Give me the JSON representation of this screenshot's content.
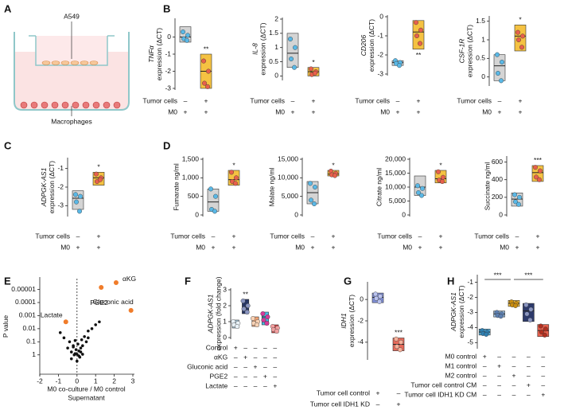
{
  "diagram": {
    "panel": "A",
    "labels": [
      "A549",
      "Macrophages"
    ]
  },
  "chart_data": [
    {
      "type": "box",
      "panel": "B",
      "ylabel_gene": "TNFα",
      "ylabel": "expression (ΔCT)",
      "ylim": [
        -3,
        1
      ],
      "yticks": [
        0,
        -1,
        -2,
        -3
      ],
      "groups": [
        {
          "color": "#d4d4d4",
          "point_color": "#5ab8e6",
          "low": -0.3,
          "median": 0,
          "high": 0.6,
          "points": [
            0.3,
            0.1,
            -0.1,
            -0.2
          ]
        },
        {
          "color": "#f5c242",
          "point_color": "#e8604c",
          "low": -3,
          "median": -2,
          "high": -1,
          "points": [
            -1.4,
            -2,
            -2.7,
            -2.9
          ],
          "label": "**"
        }
      ],
      "conditions": [
        {
          "name": "Tumor cells",
          "signs": [
            "–",
            "+"
          ]
        },
        {
          "name": "M0",
          "signs": [
            "+",
            "+"
          ]
        }
      ]
    },
    {
      "type": "box",
      "ylabel_gene": "IL-8",
      "ylabel": "expression (ΔCT)",
      "ylim": [
        -0.1,
        2
      ],
      "yticks": [
        0,
        0.5,
        1,
        1.5,
        2
      ],
      "groups": [
        {
          "color": "#d4d4d4",
          "point_color": "#5ab8e6",
          "low": 0.3,
          "median": 0.8,
          "high": 1.5,
          "points": [
            1.3,
            1.0,
            0.6,
            0.3
          ]
        },
        {
          "color": "#f5c242",
          "point_color": "#e8604c",
          "low": 0,
          "median": 0.15,
          "high": 0.3,
          "points": [
            0.25,
            0.15,
            0.05,
            0.1
          ],
          "label": "*"
        }
      ],
      "conditions": [
        {
          "name": "Tumor cells",
          "signs": [
            "–",
            "+"
          ]
        },
        {
          "name": "M0",
          "signs": [
            "+",
            "+"
          ]
        }
      ]
    },
    {
      "type": "box",
      "ylabel_gene": "CD206",
      "ylabel": "expression (ΔCT)",
      "ylim": [
        -3,
        0
      ],
      "yticks": [
        0,
        -1,
        -2,
        -3
      ],
      "groups": [
        {
          "color": "#d4d4d4",
          "point_color": "#5ab8e6",
          "low": -2.55,
          "median": -2.4,
          "high": -2.3,
          "points": [
            -2.3,
            -2.4,
            -2.45,
            -2.55
          ]
        },
        {
          "color": "#f5c242",
          "point_color": "#e8604c",
          "low": -1.7,
          "median": -0.8,
          "high": -0.2,
          "points": [
            -0.3,
            -0.7,
            -1.0,
            -1.4
          ],
          "label": "**"
        }
      ],
      "conditions": [
        {
          "name": "Tumor cells",
          "signs": [
            "–",
            "+"
          ]
        },
        {
          "name": "M0",
          "signs": [
            "+",
            "+"
          ]
        }
      ]
    },
    {
      "type": "box",
      "ylabel_gene": "CSF-1R",
      "ylabel": "expression (ΔCT)",
      "ylim": [
        -0.2,
        1.6
      ],
      "yticks": [
        0,
        0.5,
        1,
        1.5
      ],
      "groups": [
        {
          "color": "#d4d4d4",
          "point_color": "#5ab8e6",
          "low": -0.1,
          "median": 0.3,
          "high": 0.6,
          "points": [
            0.6,
            0.4,
            0.1,
            -0.1
          ]
        },
        {
          "color": "#f5c242",
          "point_color": "#e8604c",
          "low": 0.7,
          "median": 1.1,
          "high": 1.4,
          "points": [
            1.2,
            1.1,
            1.0,
            0.8
          ],
          "label": "*"
        }
      ],
      "conditions": [
        {
          "name": "Tumor cells",
          "signs": [
            "–",
            "+"
          ]
        },
        {
          "name": "M0",
          "signs": [
            "+",
            "+"
          ]
        }
      ]
    },
    {
      "type": "box",
      "panel": "C",
      "ylabel_gene": "ADPGK-AS1",
      "ylabel": "expression (ΔCT)",
      "ylim": [
        -3.5,
        -0.5
      ],
      "yticks": [
        -1,
        -2,
        -3
      ],
      "groups": [
        {
          "color": "#d4d4d4",
          "point_color": "#5ab8e6",
          "low": -3.2,
          "median": -2.6,
          "high": -2.2,
          "points": [
            -2.4,
            -2.5,
            -2.8,
            -3.3
          ]
        },
        {
          "color": "#f5c242",
          "point_color": "#e8604c",
          "low": -1.9,
          "median": -1.5,
          "high": -1.2,
          "points": [
            -1.3,
            -1.5,
            -1.7,
            -1.6
          ],
          "label": "*"
        }
      ],
      "conditions": [
        {
          "name": "Tumor cells",
          "signs": [
            "–",
            "+"
          ]
        },
        {
          "name": "M0",
          "signs": [
            "+",
            "+"
          ]
        }
      ]
    },
    {
      "type": "box",
      "panel": "D",
      "ylabel": "Fumarate ng/ml",
      "ylim": [
        0,
        1500
      ],
      "yticks": [
        0,
        500,
        {
          "value": 1000,
          "label": "1,000"
        },
        {
          "value": 1500,
          "label": "1,500"
        }
      ],
      "groups": [
        {
          "color": "#d4d4d4",
          "point_color": "#5ab8e6",
          "low": 100,
          "median": 350,
          "high": 700,
          "points": [
            700,
            500,
            150,
            100
          ]
        },
        {
          "color": "#f5c242",
          "point_color": "#e8604c",
          "low": 800,
          "median": 950,
          "high": 1200,
          "points": [
            1150,
            1000,
            900,
            850
          ],
          "label": "*"
        }
      ],
      "conditions": [
        {
          "name": "Tumor cells",
          "signs": [
            "–",
            "+"
          ]
        },
        {
          "name": "M0",
          "signs": [
            "+",
            "+"
          ]
        }
      ]
    },
    {
      "type": "box",
      "ylabel": "Malate ng/ml",
      "ylim": [
        0,
        15000
      ],
      "yticks": [
        0,
        {
          "value": 5000,
          "label": "5,000"
        },
        {
          "value": 10000,
          "label": "10,000"
        },
        {
          "value": 15000,
          "label": "15,000"
        }
      ],
      "groups": [
        {
          "color": "#d4d4d4",
          "point_color": "#5ab8e6",
          "low": 3000,
          "median": 6000,
          "high": 9000,
          "points": [
            8500,
            7500,
            4000,
            3000
          ]
        },
        {
          "color": "#f5c242",
          "point_color": "#e8604c",
          "low": 10500,
          "median": 11000,
          "high": 12000,
          "points": [
            11800,
            11200,
            10800,
            10600
          ],
          "label": "*"
        }
      ],
      "conditions": [
        {
          "name": "Tumor cells",
          "signs": [
            "–",
            "+"
          ]
        },
        {
          "name": "M0",
          "signs": [
            "+",
            "+"
          ]
        }
      ]
    },
    {
      "type": "box",
      "ylabel": "Citrate ng/ml",
      "ylim": [
        0,
        20000
      ],
      "yticks": [
        0,
        {
          "value": 5000,
          "label": "5,000"
        },
        {
          "value": 10000,
          "label": "10,000"
        },
        {
          "value": 15000,
          "label": "15,000"
        },
        {
          "value": 20000,
          "label": "20,000"
        }
      ],
      "groups": [
        {
          "color": "#d4d4d4",
          "point_color": "#5ab8e6",
          "low": 7000,
          "median": 10000,
          "high": 14000,
          "points": [
            10500,
            9500,
            8000,
            7000
          ]
        },
        {
          "color": "#f5c242",
          "point_color": "#e8604c",
          "low": 11500,
          "median": 13000,
          "high": 16000,
          "points": [
            15500,
            13500,
            12500,
            12000
          ],
          "label": "*"
        }
      ],
      "conditions": [
        {
          "name": "Tumor cells",
          "signs": [
            "–",
            "+"
          ]
        },
        {
          "name": "M0",
          "signs": [
            "+",
            "+"
          ]
        }
      ]
    },
    {
      "type": "box",
      "ylabel": "Succinate ng/ml",
      "ylim": [
        0,
        650
      ],
      "yticks": [
        0,
        200,
        400,
        600
      ],
      "groups": [
        {
          "color": "#d4d4d4",
          "point_color": "#5ab8e6",
          "low": 100,
          "median": 180,
          "high": 250,
          "points": [
            230,
            200,
            150,
            120
          ]
        },
        {
          "color": "#f5c242",
          "point_color": "#e8604c",
          "low": 380,
          "median": 480,
          "high": 560,
          "points": [
            540,
            500,
            430,
            400
          ],
          "label": "***"
        }
      ],
      "conditions": [
        {
          "name": "Tumor cells",
          "signs": [
            "–",
            "+"
          ]
        },
        {
          "name": "M0",
          "signs": [
            "+",
            "+"
          ]
        }
      ]
    },
    {
      "type": "scatter",
      "panel": "E",
      "ylabel": "P value",
      "xlabel": "M0 co-culture / M0 control",
      "xlabel2": "Supernatant",
      "log_y": true,
      "xlim": [
        -2,
        3
      ],
      "xticks": [
        -2,
        -1,
        0,
        1,
        2,
        3
      ],
      "ylim": [
        30,
        1.5e-06
      ],
      "yticks": [
        1e-05,
        0.0001,
        0.001,
        0.01,
        0.1,
        1
      ],
      "series": [
        {
          "color": "#111111",
          "x": [
            -0.9,
            -0.7,
            -0.5,
            -0.4,
            -0.3,
            -0.2,
            -0.15,
            -0.1,
            -0.05,
            0,
            0.05,
            0.1,
            0.15,
            0.2,
            0.25,
            0.3,
            0.4,
            0.5,
            0.6,
            0.8,
            1.0,
            1.2,
            -0.3,
            -0.1,
            0.1,
            0.2,
            -0.2,
            0.0,
            0.3,
            0.6
          ],
          "y": [
            0.02,
            0.05,
            0.3,
            0.1,
            0.6,
            0.2,
            1,
            0.08,
            0.4,
            0.9,
            0.15,
            0.5,
            1.5,
            0.3,
            0.07,
            0.2,
            0.04,
            0.1,
            0.015,
            0.01,
            0.005,
            0.003,
            2,
            0.8,
            1.2,
            0.6,
            0.25,
            3,
            0.9,
            0.05
          ]
        },
        {
          "color": "#f07c2a",
          "x": [
            1.3,
            2.1,
            2.9,
            -0.6
          ],
          "y": [
            7e-06,
            3e-06,
            0.0004,
            0.003
          ],
          "point_labels": [
            "PGE2",
            "αKG",
            "Gluconic acid",
            "Lactate"
          ]
        }
      ]
    },
    {
      "type": "box",
      "panel": "F",
      "ylabel_gene": "ADPGK-AS1",
      "ylabel": "expression (fold change)",
      "ylim": [
        0,
        3
      ],
      "yticks": [
        0,
        1,
        2,
        3
      ],
      "groups": [
        {
          "color": "#a9c9dd",
          "point_color": "#e8f1f7",
          "low": 0.6,
          "median": 0.85,
          "high": 1.1,
          "points": [
            1.0,
            0.9,
            0.8,
            0.7
          ]
        },
        {
          "color": "#263665",
          "point_color": "#8a95c0",
          "low": 1.5,
          "median": 1.9,
          "high": 2.4,
          "points": [
            2.3,
            2.0,
            1.8,
            1.6
          ],
          "label": "**"
        },
        {
          "color": "#f0a070",
          "point_color": "#f8d2b5",
          "low": 0.7,
          "median": 1.0,
          "high": 1.3,
          "points": [
            1.2,
            1.0,
            0.9,
            0.8
          ]
        },
        {
          "color": "#45bde6",
          "point_color": "#d63a9a",
          "low": 0.8,
          "median": 1.3,
          "high": 1.6,
          "points": [
            1.5,
            1.3,
            1.1,
            0.9
          ]
        },
        {
          "color": "#d93b3b",
          "point_color": "#f2a0a0",
          "low": 0.3,
          "median": 0.55,
          "high": 0.8,
          "points": [
            0.7,
            0.6,
            0.5,
            0.4
          ]
        }
      ],
      "conditions": [
        {
          "name": "Control",
          "signs": [
            "+",
            "–",
            "–",
            "–",
            "–"
          ]
        },
        {
          "name": "αKG",
          "signs": [
            "–",
            "+",
            "–",
            "–",
            "–"
          ]
        },
        {
          "name": "Gluconic acid",
          "signs": [
            "–",
            "–",
            "+",
            "–",
            "–"
          ]
        },
        {
          "name": "PGE2",
          "signs": [
            "–",
            "–",
            "–",
            "+",
            "–"
          ]
        },
        {
          "name": "Lactate",
          "signs": [
            "–",
            "–",
            "–",
            "–",
            "+"
          ]
        }
      ]
    },
    {
      "type": "box",
      "panel": "G",
      "ylabel_gene": "IDH1",
      "ylabel": "expression (ΔCT)",
      "ylim": [
        -5.5,
        1.5
      ],
      "yticks": [
        0,
        -2,
        -4
      ],
      "groups": [
        {
          "color": "#7f8ed6",
          "point_color": "#b9c2ee",
          "low": -0.3,
          "median": 0.2,
          "high": 0.6,
          "points": [
            0.5,
            0.3,
            0.1,
            -0.2
          ]
        },
        {
          "color": "#e86a5a",
          "point_color": "#f5b09a",
          "low": -4.8,
          "median": -4.2,
          "high": -3.6,
          "points": [
            -3.7,
            -4,
            -4.4,
            -4.7
          ],
          "label": "***"
        }
      ],
      "conditions": [
        {
          "name": "Tumor cell control",
          "signs": [
            "+",
            "–"
          ]
        },
        {
          "name": "Tumor cell  IDH1 KD",
          "signs": [
            "–",
            "+"
          ]
        }
      ]
    },
    {
      "type": "box",
      "panel": "H",
      "ylabel_gene": "ADPGK-AS1",
      "ylabel": "expression (ΔCT)",
      "ylim": [
        -5.3,
        -0.6
      ],
      "yticks": [
        -1,
        -2,
        -3,
        -4,
        -5
      ],
      "groups": [
        {
          "color": "#5ab8e6",
          "point_color": "#2f7fb0",
          "low": -4.5,
          "median": -4.3,
          "high": -4.1,
          "points": [
            -4.2,
            -4.3,
            -4.4,
            -4.45
          ]
        },
        {
          "color": "#9dc0e0",
          "point_color": "#5d7fb0",
          "low": -3.3,
          "median": -3.1,
          "high": -2.9,
          "points": [
            -3.0,
            -3.1,
            -3.2,
            -3.25
          ]
        },
        {
          "color": "#f5c242",
          "point_color": "#c98d10",
          "low": -2.6,
          "median": -2.4,
          "high": -2.2,
          "points": [
            -2.3,
            -2.4,
            -2.5,
            -2.55
          ]
        },
        {
          "color": "#2d3a6b",
          "point_color": "#8a95c0",
          "low": -3.6,
          "median": -2.9,
          "high": -2.4,
          "points": [
            -2.5,
            -2.8,
            -3.1,
            -3.5
          ]
        },
        {
          "color": "#e8604c",
          "point_color": "#b03020",
          "low": -4.6,
          "median": -4.2,
          "high": -3.8,
          "points": [
            -3.9,
            -4.1,
            -4.3,
            -4.5
          ]
        }
      ],
      "annotations": [
        "***",
        "***"
      ],
      "conditions": [
        {
          "name": "M0 control",
          "signs": [
            "+",
            "–",
            "–",
            "–",
            "–"
          ]
        },
        {
          "name": "M1 control",
          "signs": [
            "–",
            "+",
            "–",
            "–",
            "–"
          ]
        },
        {
          "name": "M2 control",
          "signs": [
            "–",
            "–",
            "+",
            "–",
            "–"
          ]
        },
        {
          "name": "Tumor cell control CM",
          "signs": [
            "–",
            "–",
            "–",
            "+",
            "–"
          ]
        },
        {
          "name": "Tumor cell IDH1 KD CM",
          "signs": [
            "–",
            "–",
            "–",
            "–",
            "+"
          ]
        }
      ]
    }
  ]
}
